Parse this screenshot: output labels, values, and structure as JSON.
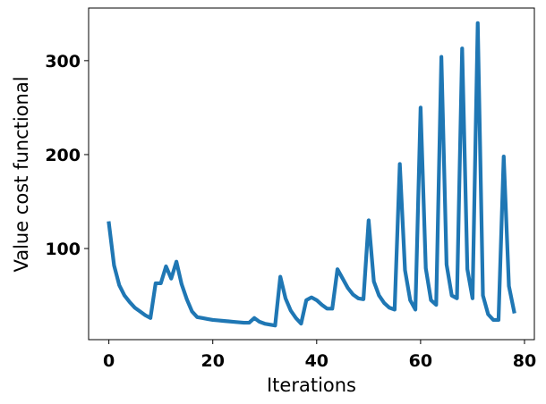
{
  "chart_data": {
    "type": "line",
    "xlabel": "Iterations",
    "ylabel": "Value cost functional",
    "xlim": [
      -3.9,
      81.9
    ],
    "ylim": [
      3,
      356
    ],
    "xticks": [
      0,
      20,
      40,
      60,
      80
    ],
    "yticks": [
      100,
      200,
      300
    ],
    "grid": false,
    "legend": "none",
    "series": [
      {
        "color": "#1f77b4",
        "x": [
          0,
          1,
          2,
          3,
          4,
          5,
          6,
          7,
          8,
          9,
          10,
          11,
          12,
          13,
          14,
          15,
          16,
          17,
          18,
          19,
          20,
          21,
          22,
          23,
          24,
          25,
          26,
          27,
          28,
          29,
          30,
          31,
          32,
          33,
          34,
          35,
          36,
          37,
          38,
          39,
          40,
          41,
          42,
          43,
          44,
          45,
          46,
          47,
          48,
          49,
          50,
          51,
          52,
          53,
          54,
          55,
          56,
          57,
          58,
          59,
          60,
          61,
          62,
          63,
          64,
          65,
          66,
          67,
          68,
          69,
          70,
          71,
          72,
          73,
          74,
          75,
          76,
          77,
          78
        ],
        "y": [
          127,
          82,
          61,
          50,
          43,
          37,
          33,
          29,
          26,
          63,
          63,
          81,
          68,
          86,
          62,
          46,
          33,
          27,
          26,
          25,
          24,
          23.5,
          23,
          22.5,
          22,
          21.5,
          21,
          21,
          26,
          22,
          20,
          19,
          18,
          70,
          47,
          34,
          26,
          20,
          45,
          48,
          45,
          40,
          36,
          36,
          78,
          68,
          58,
          51,
          47,
          46,
          130,
          65,
          50,
          42,
          37,
          35,
          190,
          77,
          45,
          35,
          250,
          79,
          45,
          40,
          304,
          83,
          50,
          47,
          313,
          78,
          47,
          340,
          50,
          30,
          24,
          24,
          198,
          60,
          33
        ]
      }
    ]
  }
}
